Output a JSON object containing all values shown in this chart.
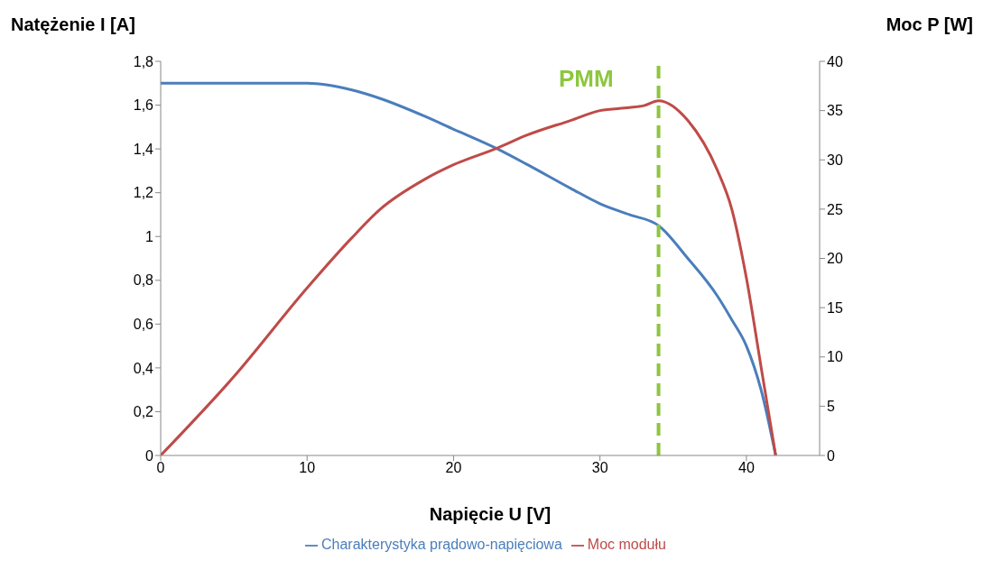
{
  "chart_data": {
    "type": "line",
    "xlabel": "Napięcie U [V]",
    "ylabel": "Natężenie I [A]",
    "y2label": "Moc P [W]",
    "x": [
      0,
      5,
      10,
      13,
      15,
      18,
      20,
      23,
      25,
      28,
      30,
      32,
      34,
      36,
      38,
      39,
      40,
      41,
      42
    ],
    "series": [
      {
        "name": "Charakterystyka prądowo-napięciowa",
        "color": "#4a7ebb",
        "values": [
          1.7,
          1.7,
          1.7,
          1.67,
          1.63,
          1.55,
          1.49,
          1.4,
          1.33,
          1.22,
          1.15,
          1.1,
          1.05,
          0.9,
          0.73,
          0.62,
          0.5,
          0.3,
          0
        ]
      },
      {
        "name": "Moc modułu",
        "color": "#be4b48",
        "axis": "y2",
        "x": [
          0,
          5,
          10,
          13,
          15,
          18,
          20,
          23,
          25,
          28,
          30,
          32,
          33,
          34,
          36,
          38,
          39,
          40,
          41,
          42
        ],
        "values": [
          0,
          8,
          17,
          22,
          25,
          28,
          29.5,
          31.2,
          32.5,
          34,
          35,
          35.3,
          35.5,
          36,
          34,
          29,
          25,
          18,
          9,
          0
        ]
      }
    ],
    "xlim": [
      0,
      45
    ],
    "xticks": [
      0,
      10,
      20,
      30,
      40
    ],
    "ylim": [
      0,
      1.8
    ],
    "yticks": [
      0,
      {
        "value": 0.2,
        "label": "0,2"
      },
      {
        "value": 0.4,
        "label": "0,4"
      },
      {
        "value": 0.6,
        "label": "0,6"
      },
      {
        "value": 0.8,
        "label": "0,8"
      },
      1,
      {
        "value": 1.2,
        "label": "1,2"
      },
      {
        "value": 1.4,
        "label": "1,4"
      },
      {
        "value": 1.6,
        "label": "1,6"
      },
      {
        "value": 1.8,
        "label": "1,8"
      }
    ],
    "y2lim": [
      0,
      40
    ],
    "y2ticks": [
      0,
      5,
      10,
      15,
      20,
      25,
      30,
      35,
      40
    ],
    "ref_lines": [
      {
        "axis": "x",
        "value": 34,
        "label": "PMM",
        "color": "#8dc63f",
        "line_style": "dashed"
      }
    ],
    "grid": false,
    "legend": "bottom",
    "marker": "none",
    "line_style": "solid"
  }
}
